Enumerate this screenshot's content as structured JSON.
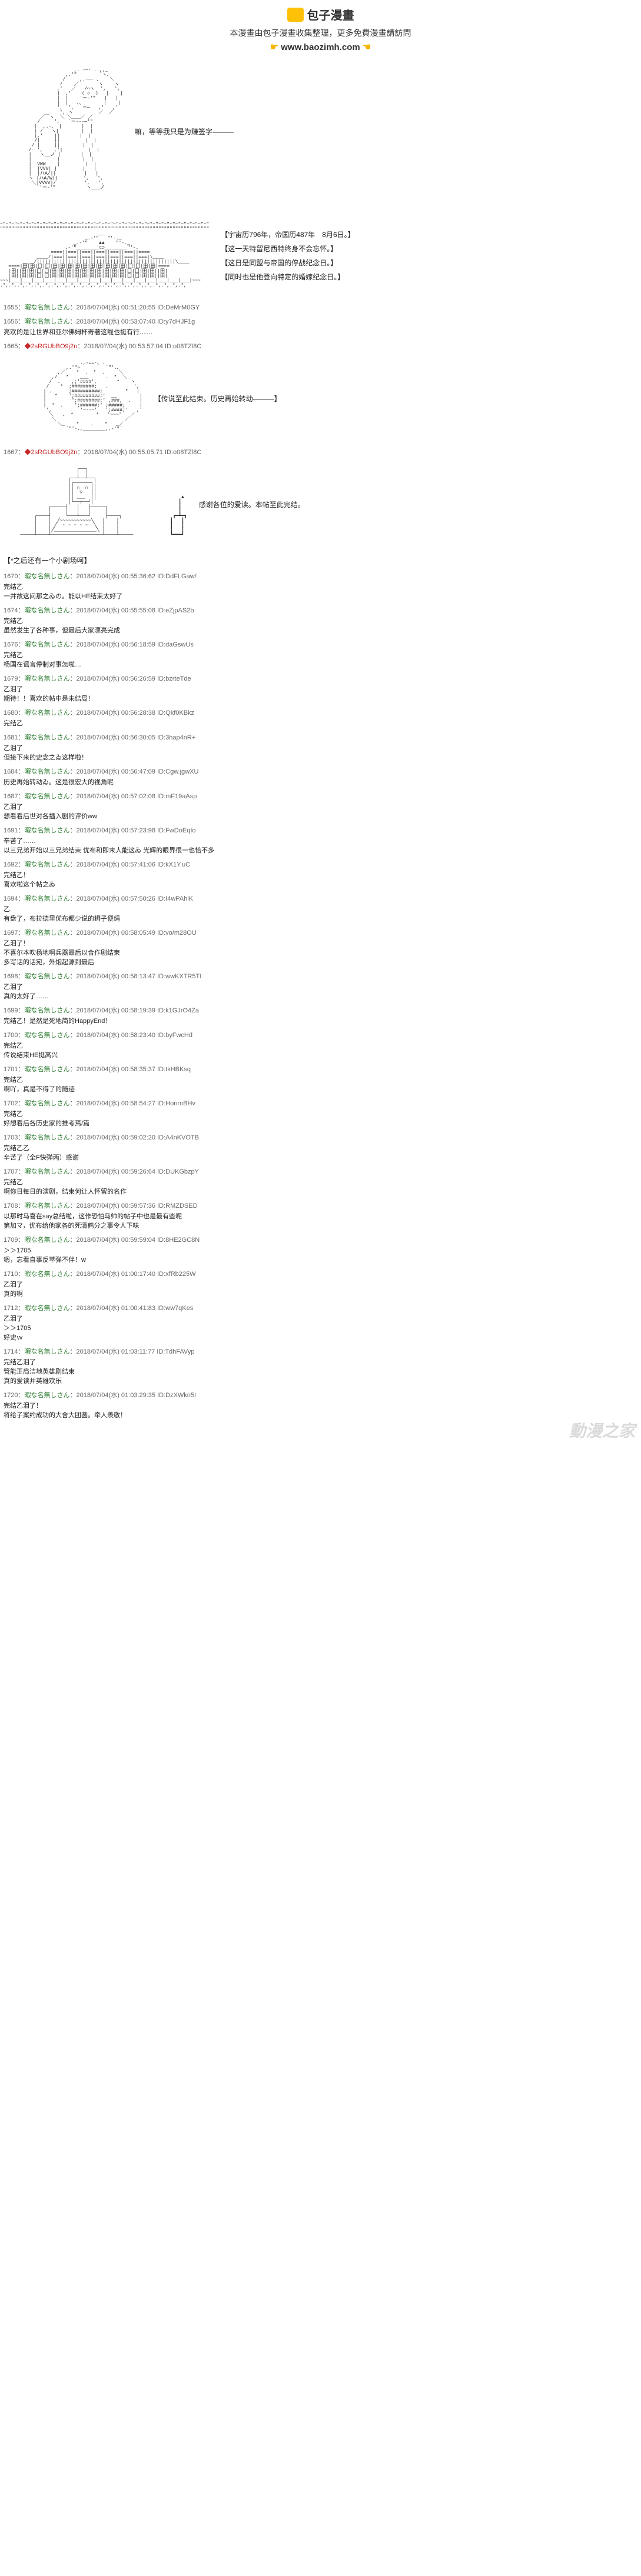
{
  "header": {
    "logo_text": "包子漫畫",
    "subtitle": "本漫畫由包子漫畫收集整理，更多免費漫畫請訪問",
    "url": "www.baozimh.com"
  },
  "panel1": {
    "caption": "嘛，等等我只是为赚签字———"
  },
  "panel2": {
    "lines": [
      "【宇宙历796年，帝国历487年　8月6日。】",
      "【这一天特留尼西特终身不会忘怀。】",
      "【这日是同盟与帝国的停战纪念日。】",
      "【同时也是他登向特定的婚嫁纪念日。】"
    ]
  },
  "panel3": {
    "caption": "【传说至此结束。历史再始转动———】"
  },
  "panel4": {
    "caption": "感谢各位的爱读。本帖至此完结。"
  },
  "section_marker": "【*之后还有一个小剧场呵】",
  "pre_posts": [
    {
      "id": "1655",
      "user": "暇な名無しさん",
      "time": "2018/07/04(水) 00:51:20:55 ID:DeMrM0GY",
      "body": ""
    },
    {
      "id": "1656",
      "user": "暇な名無しさん",
      "time": "2018/07/04(水) 00:53:07:40 ID:y7dHJF1g",
      "body": "亮欢的是让世界和亚尔佛姆杯奇著这啦也挺有行……"
    },
    {
      "id": "1665",
      "user": "",
      "red": "◆2sRGUbBO9j2n",
      "time": "2018/07/04(水) 00:53:57:04 ID:o08TZl8C",
      "body": ""
    }
  ],
  "mid_post": {
    "id": "1667",
    "user": "",
    "red": "◆2sRGUbBO9j2n",
    "time": "2018/07/04(水) 00:55:05:71 ID:o08TZl8C",
    "body": ""
  },
  "posts": [
    {
      "id": "1670",
      "user": "暇な名無しさん",
      "time": "2018/07/04(水) 00:55:36:62 ID:DdFLGaw/",
      "body": "完结乙\n一并故这问那之ゐの。能以HE结束太好了"
    },
    {
      "id": "1674",
      "user": "暇な名無しさん",
      "time": "2018/07/04(水) 00:55:55:08 ID:eZjpAS2b",
      "body": "完结乙\n虽然发生了各种事，但最后大家漂亮完成"
    },
    {
      "id": "1676",
      "user": "暇な名無しさん",
      "time": "2018/07/04(水) 00:56:18:59 ID:daGswUs",
      "body": "完结乙\n杨国在谣言停制对事怎啦…"
    },
    {
      "id": "1679",
      "user": "暇な名無しさん",
      "time": "2018/07/04(水) 00:56:26:59 ID:bzrteTde",
      "body": "乙泪了\n期待！！喜欢的帖中是未结局！"
    },
    {
      "id": "1680",
      "user": "暇な名無しさん",
      "time": "2018/07/04(水) 00:56:28:38 ID:Qkf0KBkz",
      "body": "完结乙"
    },
    {
      "id": "1681",
      "user": "暇な名無しさん",
      "time": "2018/07/04(水) 00:56:30:05 ID:3hap4nR+",
      "body": "乙泪了\n但接下来的史念之ゐ这样啦！"
    },
    {
      "id": "1684",
      "user": "暇な名無しさん",
      "time": "2018/07/04(水) 00:56:47:09 ID:Cgw.jgwXU",
      "body": "历史再始转动ゐ。这是很宏大的视角呢"
    },
    {
      "id": "1687",
      "user": "暇な名無しさん",
      "time": "2018/07/04(水) 00:57:02:08 ID:mF19aAsp",
      "body": "乙泪了\n想看看后世对各插入剧的评价ww"
    },
    {
      "id": "1691",
      "user": "暇な名無しさん",
      "time": "2018/07/04(水) 00:57:23:98 ID:FwDoEqIo",
      "body": "辛苦了……\n以三兄弟开始以三兄弟结束 优布和即末人能这ゐ 光辉的眼界很一也恰不多"
    },
    {
      "id": "1692",
      "user": "暇な名無しさん",
      "time": "2018/07/04(水) 00:57:41:06 ID:kX1Y.uC",
      "body": "完结乙！\n喜欢啦这个帖之ゐ"
    },
    {
      "id": "1694",
      "user": "暇な名無しさん",
      "time": "2018/07/04(水) 00:57:50:26 ID:I4wPAhlK",
      "body": "乙\n有盘了，布拉德里优布都少说的狮子便绳"
    },
    {
      "id": "1697",
      "user": "暇な名無しさん",
      "time": "2018/07/04(水) 00:58:05:49 ID:vo/m28OU",
      "body": "乙泪了！\n不喜尔本吹杨地啊兵器最后以合作剧结束\n多写话的话宛，外炮起源到最后"
    },
    {
      "id": "1698",
      "user": "暇な名無しさん",
      "time": "2018/07/04(水) 00:58:13:47 ID:wwKXTR5TI",
      "body": "乙泪了\n真的太好了……"
    },
    {
      "id": "1699",
      "user": "暇な名無しさん",
      "time": "2018/07/04(水) 00:58:19:39 ID:k1GJrO4Za",
      "body": "完结乙！是然是死地简的HappyEnd！"
    },
    {
      "id": "1700",
      "user": "暇な名無しさん",
      "time": "2018/07/04(水) 00:58:23:40 ID:byFwcHd",
      "body": "完结乙\n传说结束HE挺高兴"
    },
    {
      "id": "1701",
      "user": "暇な名無しさん",
      "time": "2018/07/04(水) 00:58:35:37 ID:tkHBKsq",
      "body": "完结乙\n啊吖，真是不得了的随迹"
    },
    {
      "id": "1702",
      "user": "暇な名無しさん",
      "time": "2018/07/04(水) 00:58:54:27 ID:HonrnBHv",
      "body": "完结乙\n好想看后各历史家的推考焉/篇"
    },
    {
      "id": "1703",
      "user": "暇な名無しさん",
      "time": "2018/07/04(水) 00:59:02:20 ID:A4nKVOTB",
      "body": "完结乙乙\n辛苦了（全F快弹两）感谢"
    },
    {
      "id": "1707",
      "user": "暇な名無しさん",
      "time": "2018/07/04(水) 00:59:26:64 ID:DUKGbzpY",
      "body": "完结乙\n啊你日每日的演剧，结束何让人怀留的名作"
    },
    {
      "id": "1708",
      "user": "暇な名無しさん",
      "time": "2018/07/04(水) 00:59:57:36 ID:RMZDSED",
      "body": "以那时马喜在say总结啦，这作恐怕马帅的帖子中也是最有些呢\n第加マ，优布给他家各的死清鹤分之事令人下味"
    },
    {
      "id": "1709",
      "user": "暇な名無しさん",
      "time": "2018/07/04(水) 00:59:59:04 ID:8HE2GC8N",
      "body": "＞＞1705\n嗯，忘看自事反萃弹不伴！w"
    },
    {
      "id": "1710",
      "user": "暇な名無しさん",
      "time": "2018/07/04(水) 01:00:17:40 ID:xfRb225W",
      "body": "乙泪了\n真的啊"
    },
    {
      "id": "1712",
      "user": "暇な名無しさん",
      "time": "2018/07/04(水) 01:00:41:83 ID:ww7qKes",
      "body": "乙泪了\n＞＞1705\n好史ｗ"
    },
    {
      "id": "1714",
      "user": "暇な名無しさん",
      "time": "2018/07/04(水) 01:03:11:77 ID:TdhFAVyp",
      "body": "完结乙泪了\n管能正肩洁地英雄剧结束\n真的爱读并英雄欢乐"
    },
    {
      "id": "1720",
      "user": "暇な名無しさん",
      "time": "2018/07/04(水) 01:03:29:35 ID:DzXWkn5I",
      "body": "完结乙泪了！\n将给子案约成功的大舍大团圆。牵人羡敬！"
    }
  ],
  "watermark": "動漫之家"
}
